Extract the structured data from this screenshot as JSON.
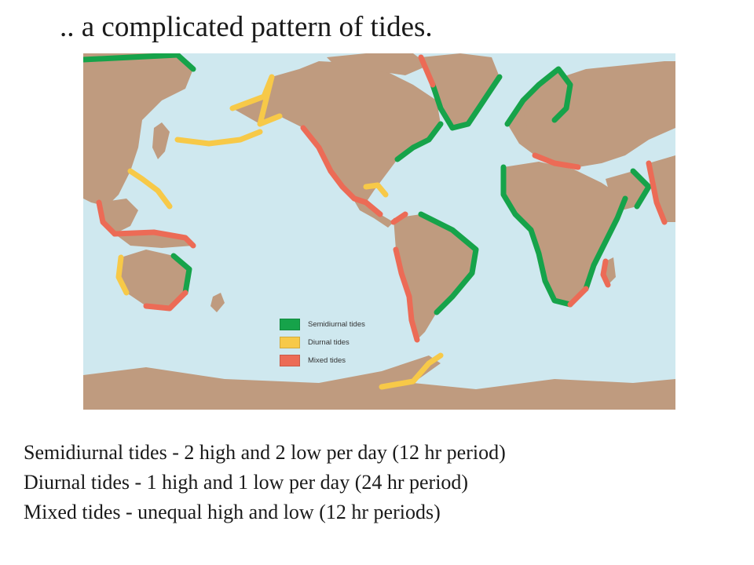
{
  "slide": {
    "title": ".. a complicated pattern of tides."
  },
  "map": {
    "colors": {
      "ocean": "#cfe8ef",
      "land": "#bf9b7f",
      "semidiurnal": "#16a34a",
      "diurnal": "#f7c948",
      "mixed": "#ec6b56"
    },
    "legend": [
      {
        "label": "Semidiurnal tides",
        "color": "#16a34a"
      },
      {
        "label": "Diurnal tides",
        "color": "#f7c948"
      },
      {
        "label": "Mixed tides",
        "color": "#ec6b56"
      }
    ]
  },
  "captions": [
    "Semidiurnal tides - 2 high and 2 low per day (12 hr period)",
    "Diurnal tides - 1 high and 1 low per day (24 hr period)",
    "Mixed tides - unequal high and low (12 hr periods)"
  ]
}
